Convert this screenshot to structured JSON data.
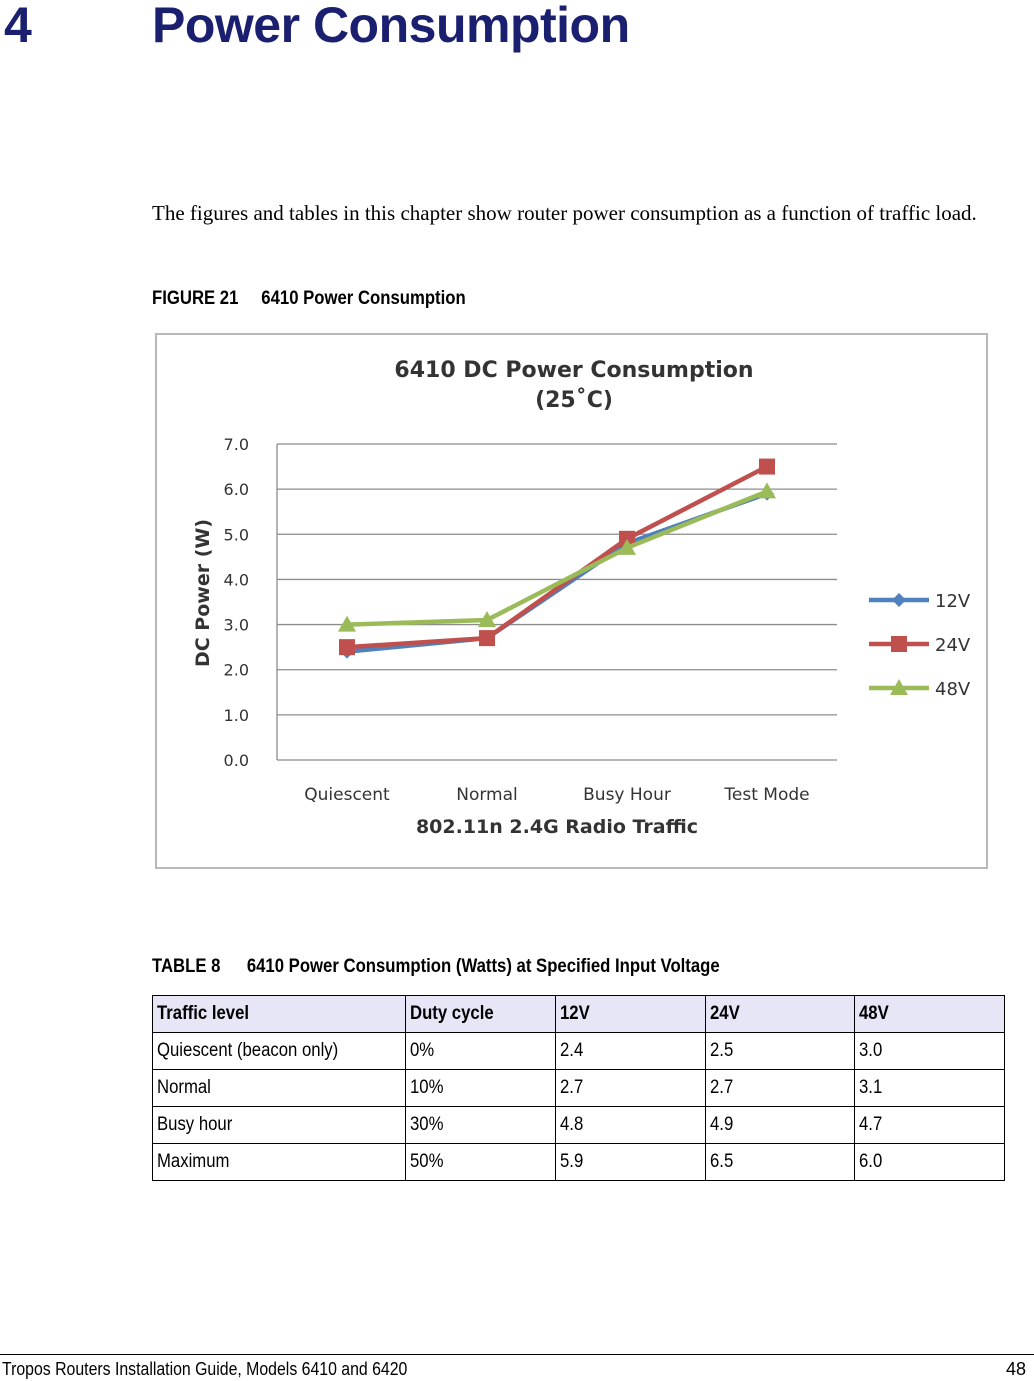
{
  "header": {
    "chapter_number": "4",
    "chapter_title": "Power Consumption"
  },
  "intro": "The figures and tables in this chapter show router power consumption as a function of traffic load.",
  "figure": {
    "label": "FIGURE 21",
    "title": "6410 Power Consumption"
  },
  "chart_data": {
    "type": "line",
    "title": "6410 DC Power Consumption",
    "subtitle": "(25˚C)",
    "xlabel": "802.11n 2.4G Radio Traffic",
    "ylabel": "DC Power (W)",
    "ylim": [
      0,
      7
    ],
    "y_ticks": [
      "0.0",
      "1.0",
      "2.0",
      "3.0",
      "4.0",
      "5.0",
      "6.0",
      "7.0"
    ],
    "categories": [
      "Quiescent",
      "Normal",
      "Busy Hour",
      "Test Mode"
    ],
    "grid": true,
    "legend_position": "right",
    "series": [
      {
        "name": "12V",
        "values": [
          2.4,
          2.7,
          4.8,
          5.9
        ],
        "color": "#4f81bd",
        "marker": "diamond"
      },
      {
        "name": "24V",
        "values": [
          2.5,
          2.7,
          4.9,
          6.5
        ],
        "color": "#c0504d",
        "marker": "square"
      },
      {
        "name": "48V",
        "values": [
          3.0,
          3.1,
          4.7,
          5.95
        ],
        "color": "#9bbb59",
        "marker": "triangle"
      }
    ]
  },
  "table": {
    "label": "TABLE 8",
    "title": "6410 Power Consumption (Watts) at Specified Input Voltage",
    "headers": [
      "Traffic level",
      "Duty cycle",
      "12V",
      "24V",
      "48V"
    ],
    "rows": [
      [
        "Quiescent (beacon only)",
        "0%",
        "2.4",
        "2.5",
        "3.0"
      ],
      [
        "Normal",
        "10%",
        "2.7",
        "2.7",
        "3.1"
      ],
      [
        "Busy hour",
        "30%",
        "4.8",
        "4.9",
        "4.7"
      ],
      [
        "Maximum",
        "50%",
        "5.9",
        "6.5",
        "6.0"
      ]
    ]
  },
  "footer": {
    "doc_title": "Tropos Routers Installation Guide, Models 6410 and 6420",
    "page_number": "48"
  }
}
